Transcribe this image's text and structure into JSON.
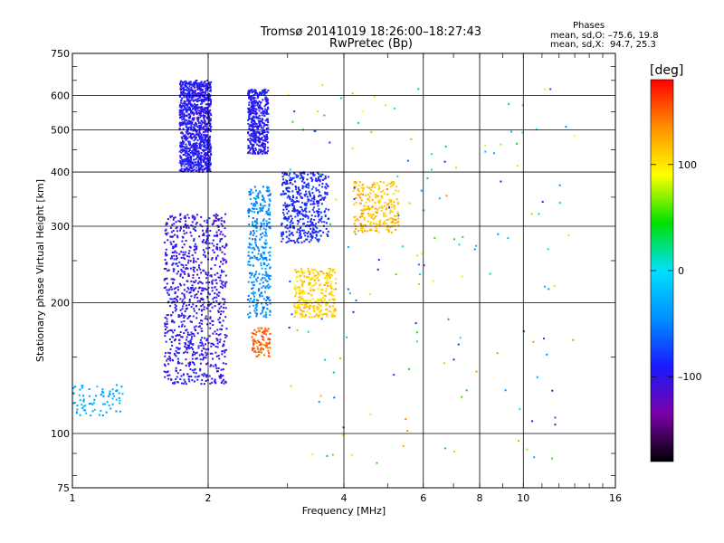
{
  "header": {
    "title_line1": "Tromsø 20141019 18:26:00–18:27:43",
    "title_line2": "RwPretec (Bp)"
  },
  "info": {
    "heading": "Phases",
    "line_o": "mean, sd,O: –75.6, 19.8",
    "line_x": "mean, sd,X:  94.7, 25.3"
  },
  "colorbar": {
    "unit_label": "[deg]",
    "ticks": [
      "100",
      "0",
      "–100"
    ],
    "tick_values": [
      100,
      0,
      -100
    ],
    "range": [
      -180,
      180
    ],
    "colors": [
      "#000000",
      "#7a00a8",
      "#1a1aff",
      "#0090ff",
      "#00e0ff",
      "#00e000",
      "#ffff00",
      "#ff9000",
      "#ff0000"
    ]
  },
  "chart_data": {
    "type": "scatter",
    "title": "Tromsø 20141019 18:26:00–18:27:43",
    "subtitle": "RwPretec (Bp)",
    "xlabel": "Frequency [MHz]",
    "ylabel": "Stationary phase Virtual Height [km]",
    "xscale": "log",
    "yscale": "log",
    "xlim": [
      1,
      16
    ],
    "ylim": [
      75,
      750
    ],
    "xticks": [
      1,
      2,
      4,
      6,
      8,
      10,
      16
    ],
    "xtick_labels": [
      "1",
      "2",
      "4",
      "6",
      "8",
      "10",
      "16"
    ],
    "yticks": [
      75,
      100,
      200,
      300,
      400,
      500,
      600,
      750
    ],
    "ytick_labels": [
      "75",
      "100",
      "200",
      "300",
      "400",
      "500",
      "600",
      "750"
    ],
    "grid": true,
    "color_scale": "phase [deg]",
    "clusters": [
      {
        "x_range": [
          1.73,
          2.03
        ],
        "y_range": [
          400,
          650
        ],
        "phase": -95,
        "density": 1100
      },
      {
        "x_range": [
          2.45,
          2.72
        ],
        "y_range": [
          440,
          620
        ],
        "phase": -95,
        "density": 450
      },
      {
        "x_range": [
          1.6,
          2.2
        ],
        "y_range": [
          130,
          320
        ],
        "phase": -100,
        "density": 900
      },
      {
        "x_range": [
          2.45,
          2.75
        ],
        "y_range": [
          185,
          370
        ],
        "phase": -45,
        "density": 350
      },
      {
        "x_range": [
          2.9,
          3.7
        ],
        "y_range": [
          275,
          400
        ],
        "phase": -85,
        "density": 450
      },
      {
        "x_range": [
          3.1,
          3.85
        ],
        "y_range": [
          185,
          240
        ],
        "phase": 110,
        "density": 300
      },
      {
        "x_range": [
          4.2,
          5.3
        ],
        "y_range": [
          290,
          380
        ],
        "phase": 115,
        "density": 250
      },
      {
        "x_range": [
          2.5,
          2.75
        ],
        "y_range": [
          150,
          175
        ],
        "phase": 150,
        "density": 90
      },
      {
        "x_range": [
          1.0,
          1.3
        ],
        "y_range": [
          110,
          130
        ],
        "phase": -30,
        "density": 80
      }
    ]
  }
}
